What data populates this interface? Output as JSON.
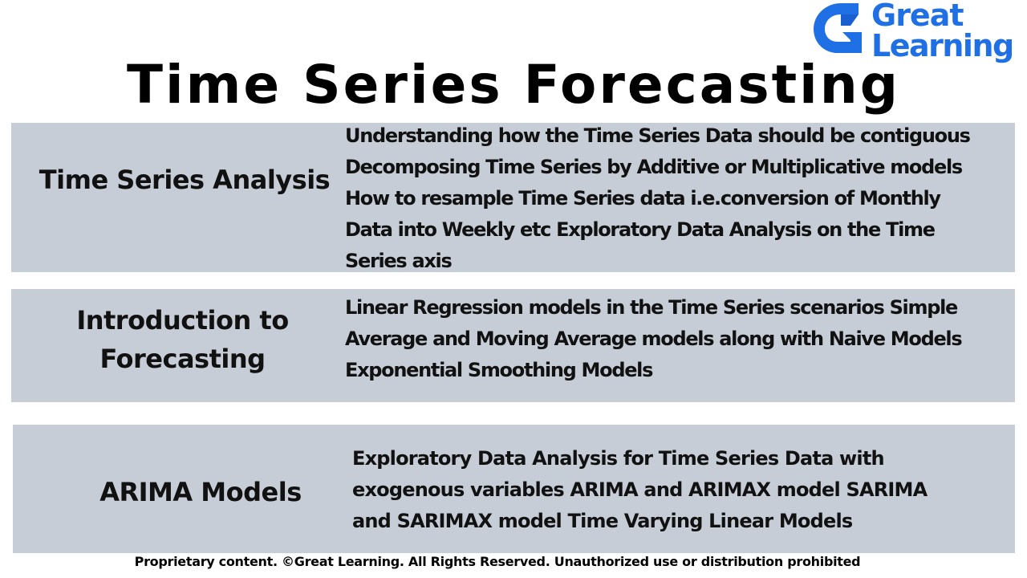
{
  "brand": {
    "line1": "Great",
    "line2": "Learning",
    "color": "#1f6fe5",
    "icon": "great-learning-g-logo"
  },
  "title": "Time Series Forecasting",
  "sections": [
    {
      "topic_lines": [
        "Time Series Analysis"
      ],
      "desc_lines": [
        "Understanding how the Time Series Data should be contiguous",
        "Decomposing Time Series by Additive or Multiplicative models",
        "How to resample Time Series data i.e.conversion of Monthly",
        "Data into Weekly etc Exploratory Data Analysis on the Time",
        "Series axis"
      ]
    },
    {
      "topic_lines": [
        "Introduction to",
        "Forecasting"
      ],
      "desc_lines": [
        "Linear Regression models in the Time Series scenarios Simple",
        "Average and Moving Average models along with Naive Models",
        "Exponential Smoothing Models"
      ]
    },
    {
      "topic_lines": [
        "ARIMA Models"
      ],
      "desc_lines": [
        "Exploratory Data Analysis for Time Series Data with",
        "exogenous variables ARIMA and ARIMAX model SARIMA",
        "and SARIMAX model Time Varying Linear Models"
      ]
    }
  ],
  "panel_color": "#c6cdd6",
  "footer": "Proprietary content. ©Great Learning. All Rights Reserved. Unauthorized use or distribution prohibited"
}
